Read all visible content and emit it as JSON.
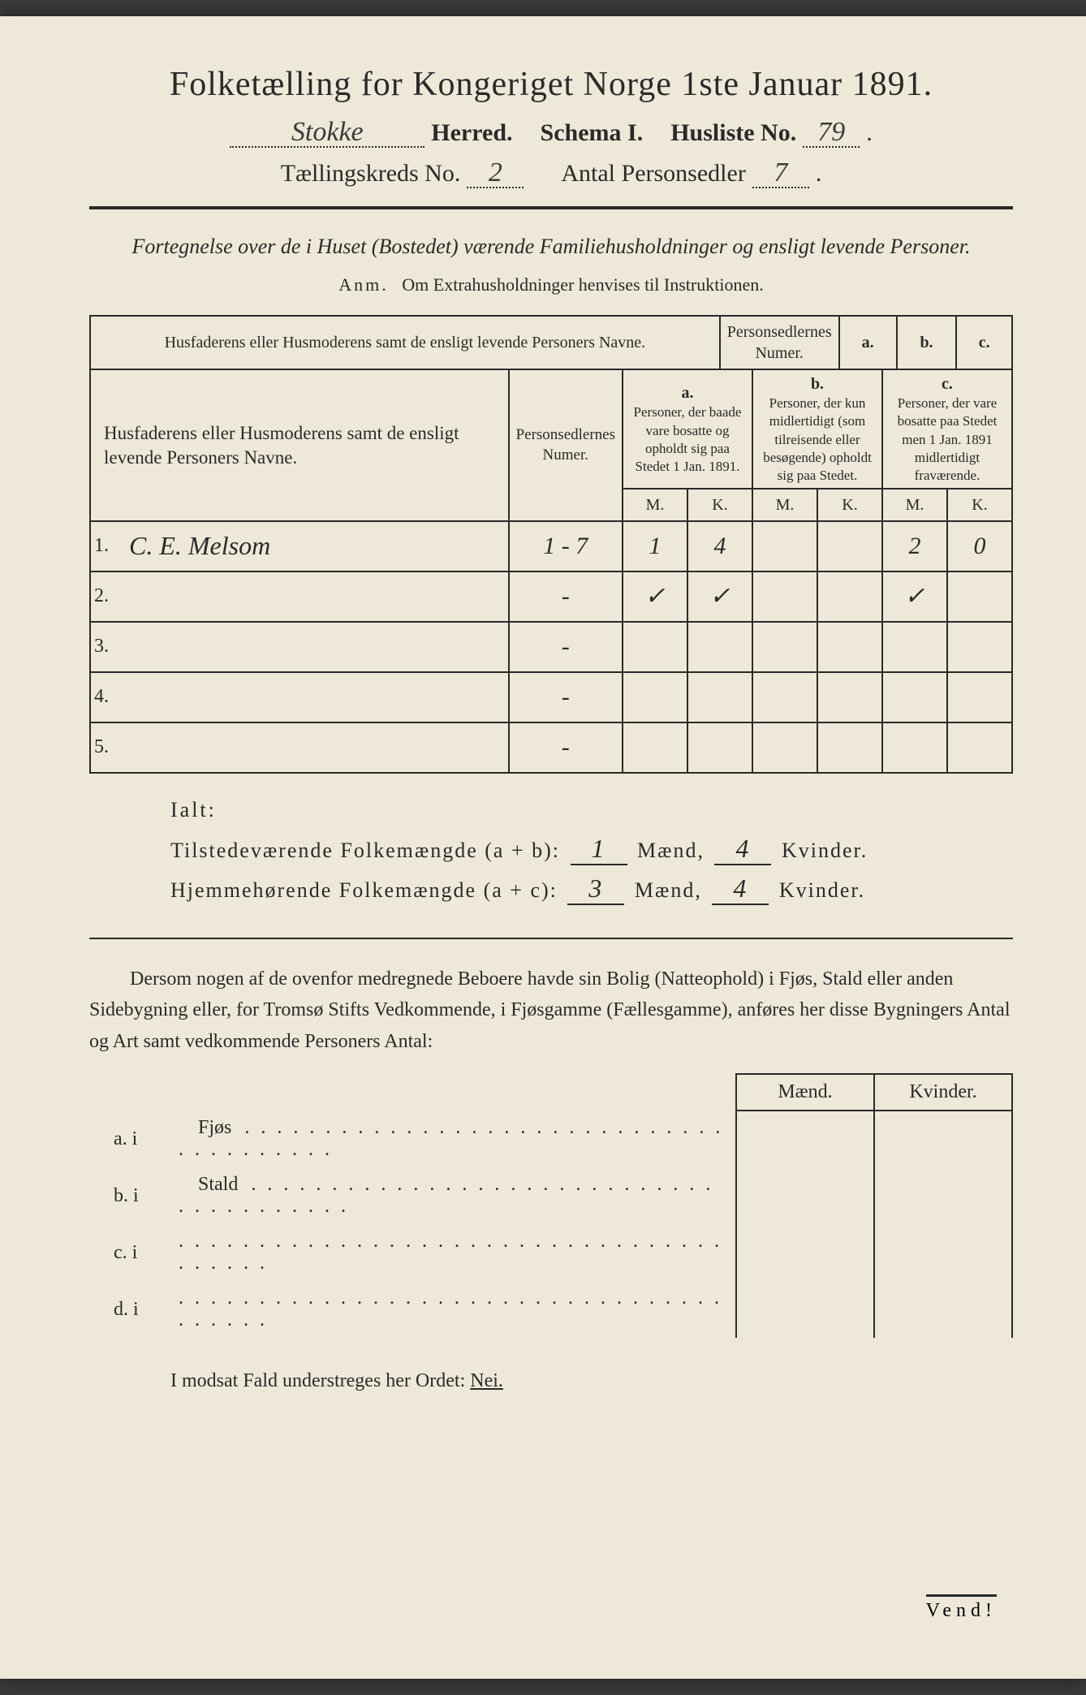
{
  "title": "Folketælling for Kongeriget Norge 1ste Januar 1891.",
  "header": {
    "herred_value": "Stokke",
    "herred_label": "Herred.",
    "schema_label": "Schema I.",
    "husliste_label": "Husliste No.",
    "husliste_value": "79",
    "kreds_label": "Tællingskreds No.",
    "kreds_value": "2",
    "antal_label": "Antal Personsedler",
    "antal_value": "7"
  },
  "subtitle": "Fortegnelse over de i Huset (Bostedet) værende Familiehusholdninger og ensligt levende Personer.",
  "anm_label": "Anm.",
  "anm_text": "Om Extrahusholdninger henvises til Instruktionen.",
  "table": {
    "col1": "Husfaderens eller Husmoderens samt de ensligt levende Personers Navne.",
    "col2": "Personsedlernes Numer.",
    "col_a_label": "a.",
    "col_a": "Personer, der baade vare bosatte og opholdt sig paa Stedet 1 Jan. 1891.",
    "col_b_label": "b.",
    "col_b": "Personer, der kun midlertidigt (som tilreisende eller besøgende) opholdt sig paa Stedet.",
    "col_c_label": "c.",
    "col_c": "Personer, der vare bosatte paa Stedet men 1 Jan. 1891 midlertidigt fraværende.",
    "m": "M.",
    "k": "K.",
    "rows": [
      {
        "n": "1.",
        "name": "C. E. Melsom",
        "numer": "1 - 7",
        "aM": "1",
        "aK": "4",
        "bM": "",
        "bK": "",
        "cM": "2",
        "cK": "0"
      },
      {
        "n": "2.",
        "name": "",
        "numer": "-",
        "aM": "✓",
        "aK": "✓",
        "bM": "",
        "bK": "",
        "cM": "✓",
        "cK": ""
      },
      {
        "n": "3.",
        "name": "",
        "numer": "-",
        "aM": "",
        "aK": "",
        "bM": "",
        "bK": "",
        "cM": "",
        "cK": ""
      },
      {
        "n": "4.",
        "name": "",
        "numer": "-",
        "aM": "",
        "aK": "",
        "bM": "",
        "bK": "",
        "cM": "",
        "cK": ""
      },
      {
        "n": "5.",
        "name": "",
        "numer": "-",
        "aM": "",
        "aK": "",
        "bM": "",
        "bK": "",
        "cM": "",
        "cK": ""
      }
    ]
  },
  "ialt": {
    "label": "Ialt:",
    "line1_label": "Tilstedeværende Folkemængde (a + b):",
    "line1_m": "1",
    "line1_k": "4",
    "line2_label": "Hjemmehørende Folkemængde (a + c):",
    "line2_m": "3",
    "line2_k": "4",
    "maend": "Mænd,",
    "kvinder": "Kvinder."
  },
  "paragraph": "Dersom nogen af de ovenfor medregnede Beboere havde sin Bolig (Natteophold) i Fjøs, Stald eller anden Sidebygning eller, for Tromsø Stifts Vedkommende, i Fjøsgamme (Fællesgamme), anføres her disse Bygningers Antal og Art samt vedkommende Personers Antal:",
  "outbuildings": {
    "maend": "Mænd.",
    "kvinder": "Kvinder.",
    "rows": [
      {
        "label": "a.  i",
        "name": "Fjøs"
      },
      {
        "label": "b.  i",
        "name": "Stald"
      },
      {
        "label": "c.  i",
        "name": ""
      },
      {
        "label": "d.  i",
        "name": ""
      }
    ]
  },
  "nei_line": "I modsat Fald understreges her Ordet:",
  "nei": "Nei.",
  "vend": "Vend!"
}
